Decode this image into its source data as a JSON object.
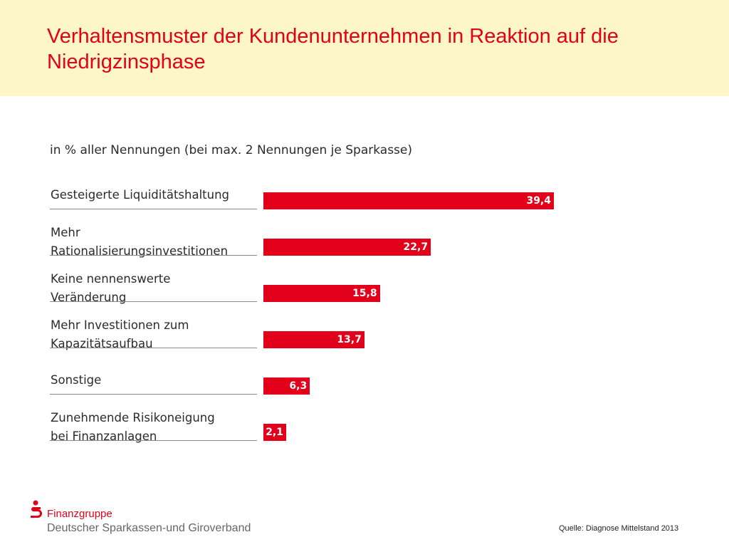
{
  "slide": {
    "title": "Verhaltensmuster der Kundenunternehmen in Reaktion auf die Niedrigzinsphase"
  },
  "footer": {
    "brand_name": "Finanzgruppe",
    "brand_org": "Deutscher Sparkassen-und Giroverband",
    "source": "Quelle: Diagnose Mittelstand 2013"
  },
  "colors": {
    "accent": "#e2001a",
    "header_bg": "#fdf6c6"
  },
  "chart_data": {
    "type": "bar",
    "orientation": "horizontal",
    "subtitle": "in % aller Nennungen (bei max. 2 Nennungen je Sparkasse)",
    "categories": [
      [
        "Gesteigerte Liquiditätshaltung"
      ],
      [
        "Mehr",
        "Rationalisierungsinvestitionen"
      ],
      [
        "Keine nennenswerte",
        "Veränderung"
      ],
      [
        "Mehr Investitionen zum",
        "Kapazitätsaufbau"
      ],
      [
        "Sonstige"
      ],
      [
        "Zunehmende Risikoneigung",
        "bei Finanzanlagen"
      ]
    ],
    "values": [
      39.4,
      22.7,
      15.8,
      13.7,
      6.3,
      2.1
    ],
    "value_labels": [
      "39,4",
      "22,7",
      "15,8",
      "13,7",
      "6,3",
      "2,1"
    ],
    "xlim": [
      0,
      39.4
    ],
    "grid": false,
    "legend": "none",
    "bar_color": "#e2001a"
  }
}
